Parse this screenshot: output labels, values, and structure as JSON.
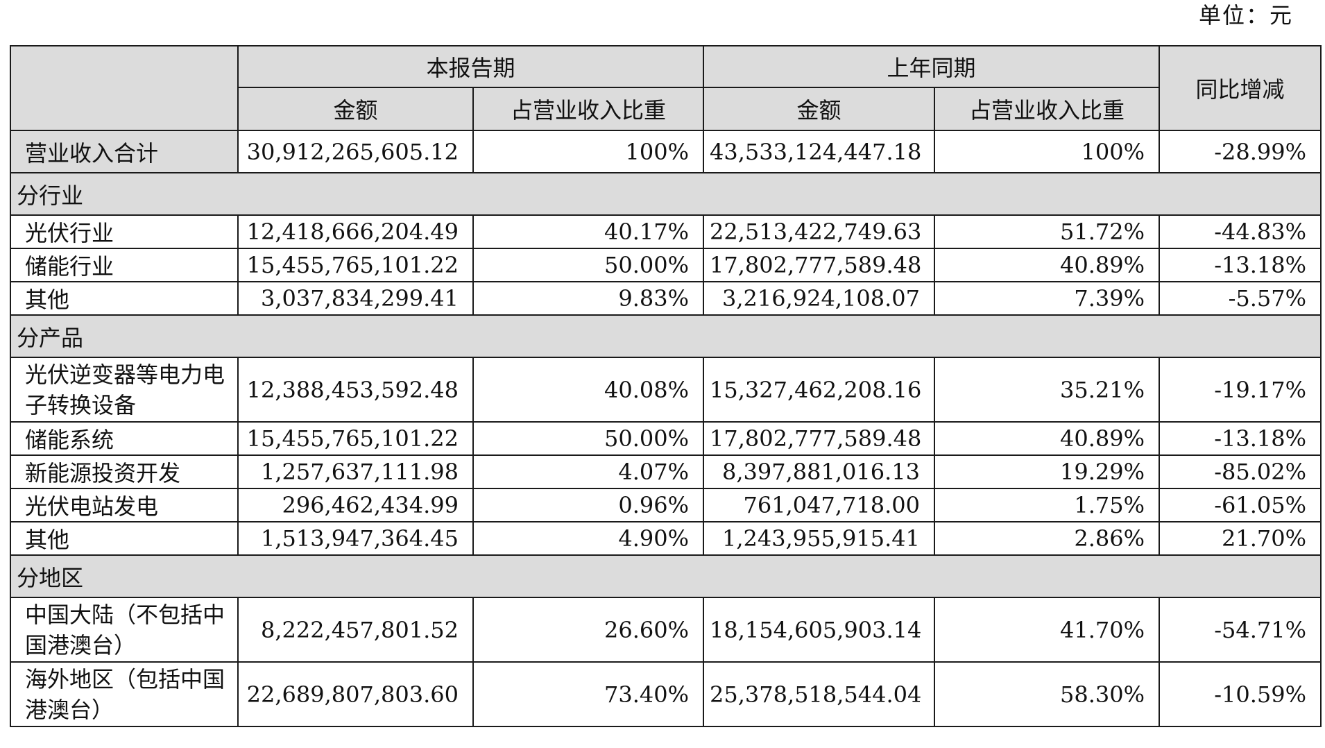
{
  "unit": "单位：元",
  "header": {
    "current_period": "本报告期",
    "prior_period": "上年同期",
    "amount": "金额",
    "share": "占营业收入比重",
    "yoy": "同比增减"
  },
  "total": {
    "label": "营业收入合计",
    "cur_amount": "30,912,265,605.12",
    "cur_share": "100%",
    "prev_amount": "43,533,124,447.18",
    "prev_share": "100%",
    "yoy": "-28.99%"
  },
  "sections": [
    {
      "title": "分行业",
      "rows": [
        {
          "label": "光伏行业",
          "cur_amount": "12,418,666,204.49",
          "cur_share": "40.17%",
          "prev_amount": "22,513,422,749.63",
          "prev_share": "51.72%",
          "yoy": "-44.83%"
        },
        {
          "label": "储能行业",
          "cur_amount": "15,455,765,101.22",
          "cur_share": "50.00%",
          "prev_amount": "17,802,777,589.48",
          "prev_share": "40.89%",
          "yoy": "-13.18%"
        },
        {
          "label": "其他",
          "cur_amount": "3,037,834,299.41",
          "cur_share": "9.83%",
          "prev_amount": "3,216,924,108.07",
          "prev_share": "7.39%",
          "yoy": "-5.57%"
        }
      ]
    },
    {
      "title": "分产品",
      "rows": [
        {
          "label": "光伏逆变器等电力电子转换设备",
          "cur_amount": "12,388,453,592.48",
          "cur_share": "40.08%",
          "prev_amount": "15,327,462,208.16",
          "prev_share": "35.21%",
          "yoy": "-19.17%"
        },
        {
          "label": "储能系统",
          "cur_amount": "15,455,765,101.22",
          "cur_share": "50.00%",
          "prev_amount": "17,802,777,589.48",
          "prev_share": "40.89%",
          "yoy": "-13.18%"
        },
        {
          "label": "新能源投资开发",
          "cur_amount": "1,257,637,111.98",
          "cur_share": "4.07%",
          "prev_amount": "8,397,881,016.13",
          "prev_share": "19.29%",
          "yoy": "-85.02%"
        },
        {
          "label": "光伏电站发电",
          "cur_amount": "296,462,434.99",
          "cur_share": "0.96%",
          "prev_amount": "761,047,718.00",
          "prev_share": "1.75%",
          "yoy": "-61.05%"
        },
        {
          "label": "其他",
          "cur_amount": "1,513,947,364.45",
          "cur_share": "4.90%",
          "prev_amount": "1,243,955,915.41",
          "prev_share": "2.86%",
          "yoy": "21.70%"
        }
      ]
    },
    {
      "title": "分地区",
      "rows": [
        {
          "label": "中国大陆（不包括中国港澳台）",
          "cur_amount": "8,222,457,801.52",
          "cur_share": "26.60%",
          "prev_amount": "18,154,605,903.14",
          "prev_share": "41.70%",
          "yoy": "-54.71%"
        },
        {
          "label": "海外地区（包括中国港澳台）",
          "cur_amount": "22,689,807,803.60",
          "cur_share": "73.40%",
          "prev_amount": "25,378,518,544.04",
          "prev_share": "58.30%",
          "yoy": "-10.59%"
        }
      ]
    }
  ]
}
